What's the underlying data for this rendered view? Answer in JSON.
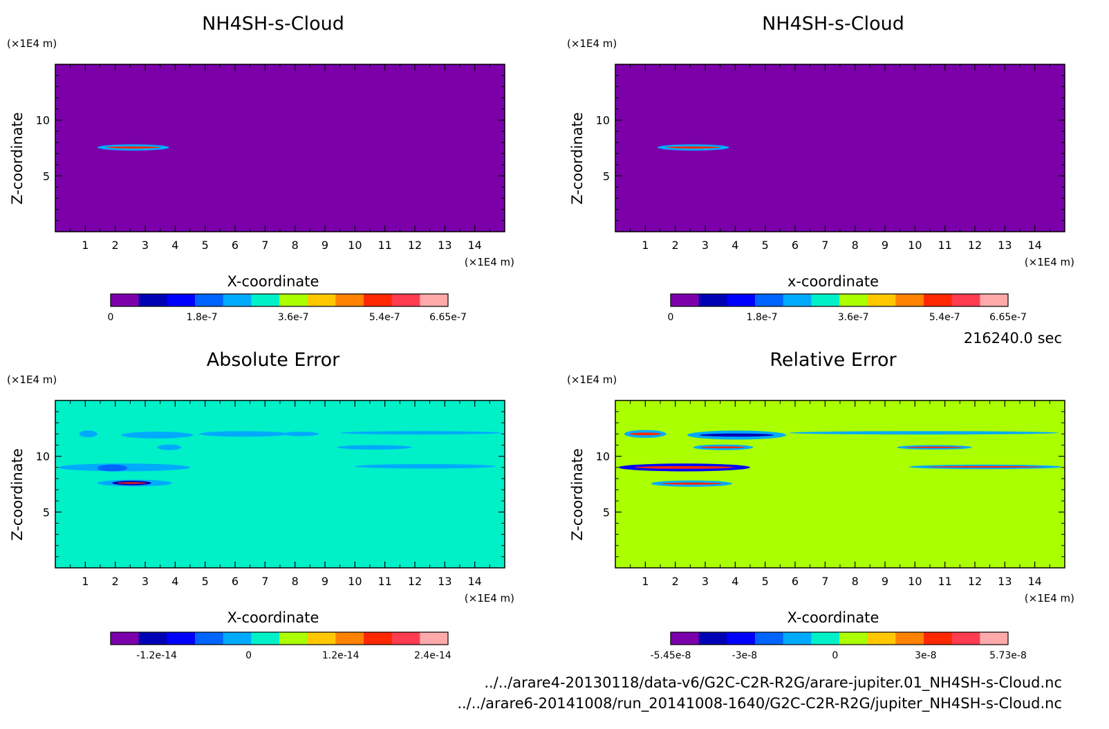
{
  "time_label": "216240.0 sec",
  "files": [
    "../../arare4-20130118/data-v6/G2C-C2R-R2G/arare-jupiter.01_NH4SH-s-Cloud.nc",
    "../../arare6-20141008/run_20141008-1640/G2C-C2R-R2G/jupiter_NH4SH-s-Cloud.nc"
  ],
  "chart_data": [
    {
      "type": "heatmap",
      "title": "NH4SH-s-Cloud",
      "xlabel": "X-coordinate",
      "ylabel": "Z-coordinate",
      "x_unit": "(×1E4 m)",
      "y_unit": "(×1E4 m)",
      "xlim": [
        0,
        15
      ],
      "ylim": [
        0,
        15
      ],
      "xticks": [
        "1",
        "2",
        "3",
        "4",
        "5",
        "6",
        "7",
        "8",
        "9",
        "10",
        "11",
        "12",
        "13",
        "14"
      ],
      "yticks": [
        "5",
        "10"
      ],
      "background_color": "#7b00aa",
      "colorbar": {
        "colors": [
          "#7b00aa",
          "#0000b4",
          "#0000ff",
          "#0064ff",
          "#00aaff",
          "#00f0c8",
          "#aaff00",
          "#ffc800",
          "#ff8200",
          "#ff2800",
          "#ff3c50",
          "#ffaaaa"
        ],
        "tick_labels": [
          "0",
          "1.8e-7",
          "3.6e-7",
          "5.4e-7",
          "6.65e-7"
        ],
        "range": [
          0,
          6.65e-07
        ]
      },
      "features": [
        {
          "x0": 1.4,
          "x1": 3.8,
          "zc": 7.55,
          "dz": 0.28,
          "fill": "#00aaff",
          "core": "#ff2800"
        }
      ]
    },
    {
      "type": "heatmap",
      "title": "NH4SH-s-Cloud",
      "xlabel": "x-coordinate",
      "ylabel": "Z-coordinate",
      "x_unit": "(×1E4 m)",
      "y_unit": "(×1E4 m)",
      "xlim": [
        0,
        15
      ],
      "ylim": [
        0,
        15
      ],
      "xticks": [
        "1",
        "2",
        "3",
        "4",
        "5",
        "6",
        "7",
        "8",
        "9",
        "10",
        "11",
        "12",
        "13",
        "14"
      ],
      "yticks": [
        "5",
        "10"
      ],
      "background_color": "#7b00aa",
      "colorbar": {
        "colors": [
          "#7b00aa",
          "#0000b4",
          "#0000ff",
          "#0064ff",
          "#00aaff",
          "#00f0c8",
          "#aaff00",
          "#ffc800",
          "#ff8200",
          "#ff2800",
          "#ff3c50",
          "#ffaaaa"
        ],
        "tick_labels": [
          "0",
          "1.8e-7",
          "3.6e-7",
          "5.4e-7",
          "6.65e-7"
        ],
        "range": [
          0,
          6.65e-07
        ]
      },
      "features": [
        {
          "x0": 1.4,
          "x1": 3.8,
          "zc": 7.55,
          "dz": 0.28,
          "fill": "#00aaff",
          "core": "#ff2800"
        }
      ]
    },
    {
      "type": "heatmap",
      "title": "Absolute Error",
      "xlabel": "X-coordinate",
      "ylabel": "Z-coordinate",
      "x_unit": "(×1E4 m)",
      "y_unit": "(×1E4 m)",
      "xlim": [
        0,
        15
      ],
      "ylim": [
        0,
        15
      ],
      "xticks": [
        "1",
        "2",
        "3",
        "4",
        "5",
        "6",
        "7",
        "8",
        "9",
        "10",
        "11",
        "12",
        "13",
        "14"
      ],
      "yticks": [
        "5",
        "10"
      ],
      "background_color": "#00f0c8",
      "colorbar": {
        "colors": [
          "#7b00aa",
          "#0000b4",
          "#0000ff",
          "#0064ff",
          "#00aaff",
          "#00f0c8",
          "#aaff00",
          "#ffc800",
          "#ff8200",
          "#ff2800",
          "#ff3c50",
          "#ffaaaa"
        ],
        "tick_labels": [
          "-1.2e-14",
          "0",
          "1.2e-14",
          "2.4e-14"
        ],
        "range": [
          -1.8e-14,
          2.6e-14
        ]
      },
      "features": [
        {
          "x0": 0.8,
          "x1": 1.4,
          "zc": 12.0,
          "dz": 0.3,
          "fill": "#00aaff"
        },
        {
          "x0": 2.2,
          "x1": 4.6,
          "zc": 11.9,
          "dz": 0.3,
          "fill": "#00aaff"
        },
        {
          "x0": 4.8,
          "x1": 7.8,
          "zc": 12.0,
          "dz": 0.25,
          "fill": "#00aaff"
        },
        {
          "x0": 7.6,
          "x1": 8.8,
          "zc": 12.0,
          "dz": 0.2,
          "fill": "#00aaff"
        },
        {
          "x0": 9.5,
          "x1": 14.9,
          "zc": 12.1,
          "dz": 0.15,
          "fill": "#00aaff"
        },
        {
          "x0": 3.4,
          "x1": 4.2,
          "zc": 10.8,
          "dz": 0.25,
          "fill": "#00aaff"
        },
        {
          "x0": 9.4,
          "x1": 11.9,
          "zc": 10.8,
          "dz": 0.2,
          "fill": "#00aaff"
        },
        {
          "x0": 0.1,
          "x1": 4.5,
          "zc": 9.0,
          "dz": 0.35,
          "fill": "#00aaff"
        },
        {
          "x0": 1.4,
          "x1": 2.4,
          "zc": 8.95,
          "dz": 0.3,
          "fill": "#0064ff"
        },
        {
          "x0": 10.0,
          "x1": 14.7,
          "zc": 9.1,
          "dz": 0.2,
          "fill": "#00aaff"
        },
        {
          "x0": 1.4,
          "x1": 3.9,
          "zc": 7.6,
          "dz": 0.3,
          "fill": "#00aaff"
        },
        {
          "x0": 1.9,
          "x1": 3.2,
          "zc": 7.6,
          "dz": 0.2,
          "fill": "#0000b4",
          "core": "#ff2800"
        }
      ]
    },
    {
      "type": "heatmap",
      "title": "Relative Error",
      "xlabel": "X-coordinate",
      "ylabel": "Z-coordinate",
      "x_unit": "(×1E4 m)",
      "y_unit": "(×1E4 m)",
      "xlim": [
        0,
        15
      ],
      "ylim": [
        0,
        15
      ],
      "xticks": [
        "1",
        "2",
        "3",
        "4",
        "5",
        "6",
        "7",
        "8",
        "9",
        "10",
        "11",
        "12",
        "13",
        "14"
      ],
      "yticks": [
        "5",
        "10"
      ],
      "background_color": "#aaff00",
      "colorbar": {
        "colors": [
          "#7b00aa",
          "#0000b4",
          "#0000ff",
          "#0064ff",
          "#00aaff",
          "#00f0c8",
          "#aaff00",
          "#ffc800",
          "#ff8200",
          "#ff2800",
          "#ff3c50",
          "#ffaaaa"
        ],
        "tick_labels": [
          "-5.45e-8",
          "-3e-8",
          "0",
          "3e-8",
          "5.73e-8"
        ],
        "range": [
          -5.45e-08,
          5.73e-08
        ]
      },
      "features": [
        {
          "x0": 0.3,
          "x1": 1.7,
          "zc": 12.0,
          "dz": 0.35,
          "fill": "#00aaff",
          "core": "#ff2800"
        },
        {
          "x0": 2.4,
          "x1": 5.7,
          "zc": 11.9,
          "dz": 0.4,
          "fill": "#00aaff",
          "core": "#0000b4"
        },
        {
          "x0": 2.6,
          "x1": 4.6,
          "zc": 10.8,
          "dz": 0.25,
          "fill": "#00aaff",
          "core": "#ff2800"
        },
        {
          "x0": 5.8,
          "x1": 14.8,
          "zc": 12.1,
          "dz": 0.15,
          "fill": "#00aaff"
        },
        {
          "x0": 9.4,
          "x1": 11.9,
          "zc": 10.8,
          "dz": 0.2,
          "fill": "#00aaff",
          "core": "#ff2800"
        },
        {
          "x0": 0.1,
          "x1": 4.5,
          "zc": 9.0,
          "dz": 0.35,
          "fill": "#0000ff",
          "core": "#ff2800"
        },
        {
          "x0": 9.8,
          "x1": 14.9,
          "zc": 9.05,
          "dz": 0.2,
          "fill": "#00aaff",
          "core": "#ff2800"
        },
        {
          "x0": 1.2,
          "x1": 3.9,
          "zc": 7.55,
          "dz": 0.28,
          "fill": "#00aaff",
          "core": "#ff2800"
        }
      ]
    }
  ]
}
